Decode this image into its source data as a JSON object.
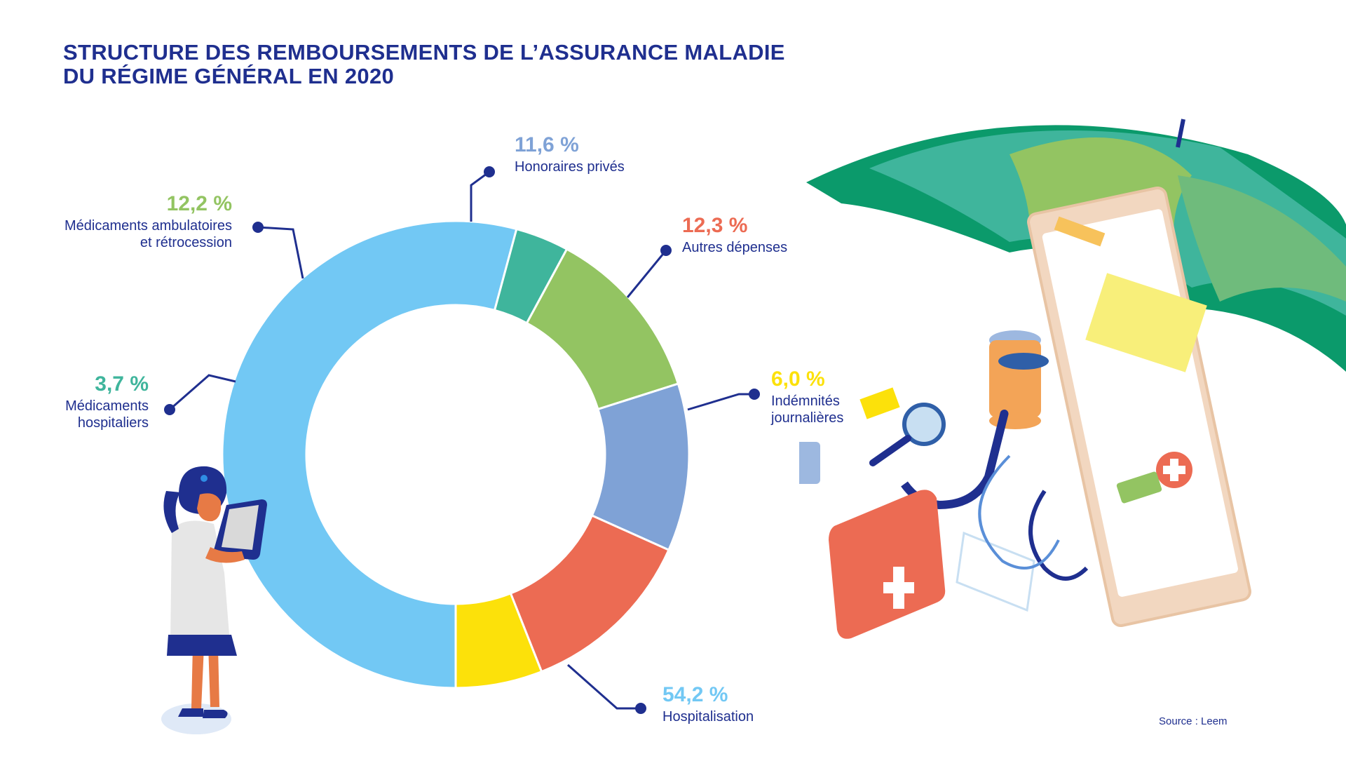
{
  "title": {
    "line1": "STRUCTURE DES REMBOURSEMENTS DE L’ASSURANCE MALADIE",
    "line2": "DU RÉGIME GÉNÉRAL EN 2020"
  },
  "source": "Source : Leem",
  "chart_data": {
    "type": "pie",
    "variant": "donut",
    "unit": "%",
    "start_angle_deg": 90,
    "direction": "clockwise",
    "slices": [
      {
        "label_lines": [
          "Hospitalisation"
        ],
        "value": 54.2,
        "value_label": "54,2 %",
        "color": "#72c8f4"
      },
      {
        "label_lines": [
          "Médicaments",
          "hospitaliers"
        ],
        "value": 3.7,
        "value_label": "3,7 %",
        "color": "#3fb59c"
      },
      {
        "label_lines": [
          "Médicaments ambulatoires",
          "et rétrocession"
        ],
        "value": 12.2,
        "value_label": "12,2 %",
        "color": "#93c462"
      },
      {
        "label_lines": [
          "Honoraires privés"
        ],
        "value": 11.6,
        "value_label": "11,6 %",
        "color": "#7fa2d6"
      },
      {
        "label_lines": [
          "Autres dépenses"
        ],
        "value": 12.3,
        "value_label": "12,3 %",
        "color": "#ec6b53"
      },
      {
        "label_lines": [
          "Indémnités",
          "journalières"
        ],
        "value": 6.0,
        "value_label": "6,0 %",
        "color": "#fce10a"
      }
    ]
  },
  "colors": {
    "title": "#1f2f8f",
    "leader": "#1f2f8f"
  }
}
